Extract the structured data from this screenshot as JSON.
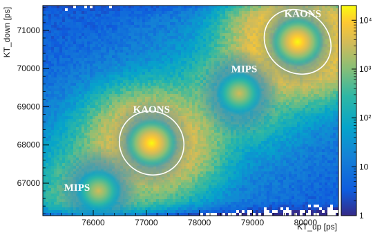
{
  "chart_data": {
    "type": "heatmap",
    "title": "",
    "xlabel": "KT_up [ps]",
    "ylabel": "KT_down [ps]",
    "xlim": [
      75050,
      80620
    ],
    "ylim": [
      66150,
      71650
    ],
    "log_scale_z": true,
    "zlim": [
      1,
      20000
    ],
    "x_ticks": [
      76000,
      77000,
      78000,
      79000,
      80000
    ],
    "y_ticks": [
      67000,
      68000,
      69000,
      70000,
      71000
    ],
    "colorbar": {
      "ticks": [
        {
          "value": 1,
          "label": "1"
        },
        {
          "value": 10,
          "label": "10"
        },
        {
          "value": 100,
          "label": "10²"
        },
        {
          "value": 1000,
          "label": "10³"
        },
        {
          "value": 10000,
          "label": "10⁴"
        }
      ],
      "colors": [
        "#352a87",
        "#0f5cdd",
        "#1481d6",
        "#06a4ca",
        "#2eb7a4",
        "#87bf77",
        "#d1bb59",
        "#fec832",
        "#f9fb0e"
      ]
    },
    "clusters": [
      {
        "x": 76100,
        "y": 66800,
        "peak": 600
      },
      {
        "x": 77100,
        "y": 68050,
        "peak": 6000
      },
      {
        "x": 78750,
        "y": 69350,
        "peak": 600
      },
      {
        "x": 79850,
        "y": 70700,
        "peak": 12000
      }
    ],
    "annotations": [
      {
        "text": "KAONS",
        "x": 79600,
        "y": 71350
      },
      {
        "text": "MIPS",
        "x": 78600,
        "y": 69900
      },
      {
        "text": "KAONS",
        "x": 76750,
        "y": 68850
      },
      {
        "text": "MIPS",
        "x": 75450,
        "y": 66800
      }
    ],
    "ellipses": [
      {
        "cx": 77100,
        "cy": 68050,
        "rx": 620,
        "ry": 820
      },
      {
        "cx": 79850,
        "cy": 70700,
        "rx": 660,
        "ry": 800
      }
    ],
    "grid": false
  }
}
